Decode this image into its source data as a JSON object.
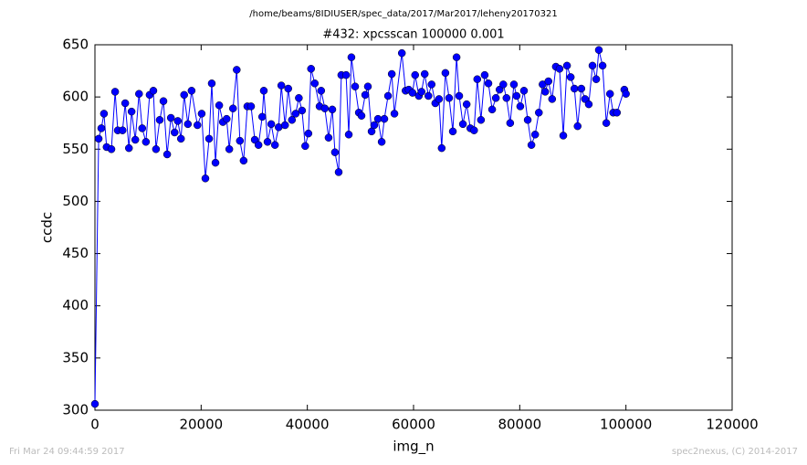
{
  "chart_data": {
    "type": "line",
    "suptitle": "/home/beams/8IDIUSER/spec_data/2017/Mar2017/leheny20170321",
    "title": "#432: xpcsscan 100000 0.001",
    "xlabel": "img_n",
    "ylabel": "ccdc",
    "footer_left": "Fri Mar 24 09:44:59 2017",
    "footer_right": "spec2nexus, (C) 2014-2017",
    "xlim": [
      0,
      120000
    ],
    "xticks": [
      0,
      20000,
      40000,
      60000,
      80000,
      100000,
      120000
    ],
    "ylim": [
      300,
      650
    ],
    "yticks": [
      300,
      350,
      400,
      450,
      500,
      550,
      600,
      650
    ],
    "series": [
      {
        "color": "#0000ff",
        "x": [
          0,
          700,
          1200,
          1700,
          2200,
          3100,
          3800,
          4300,
          5200,
          5700,
          6400,
          6900,
          7600,
          8300,
          8900,
          9600,
          10300,
          11000,
          11500,
          12200,
          12900,
          13600,
          14300,
          15000,
          15600,
          16200,
          16800,
          17500,
          18200,
          19300,
          20100,
          20800,
          21500,
          22000,
          22700,
          23400,
          24100,
          24800,
          25300,
          26000,
          26700,
          27300,
          28000,
          28700,
          29400,
          30100,
          30800,
          31500,
          31800,
          32500,
          33200,
          33900,
          34600,
          35100,
          35800,
          36400,
          37100,
          37800,
          38400,
          39000,
          39600,
          40200,
          40700,
          41400,
          42300,
          42600,
          43300,
          44000,
          44700,
          45200,
          45900,
          46400,
          47300,
          47800,
          48300,
          49000,
          49700,
          50200,
          50900,
          51400,
          52100,
          52600,
          53300,
          54000,
          54500,
          55200,
          55900,
          56400,
          57800,
          58500,
          59100,
          59800,
          60300,
          61000,
          61500,
          62100,
          62800,
          63400,
          64100,
          64800,
          65300,
          66000,
          66700,
          67400,
          68100,
          68600,
          69300,
          70000,
          70700,
          71400,
          72000,
          72700,
          73400,
          74100,
          74800,
          75500,
          76200,
          76900,
          77500,
          78200,
          78900,
          79400,
          80100,
          80800,
          81500,
          82200,
          82900,
          83600,
          84300,
          84800,
          85400,
          86100,
          86800,
          87500,
          88200,
          88900,
          89600,
          90300,
          90900,
          91600,
          92300,
          93000,
          93700,
          94400,
          94900,
          95600,
          96300,
          97000,
          97600,
          98300,
          99700,
          100000
        ],
        "values": [
          306,
          560,
          570,
          584,
          552,
          550,
          605,
          568,
          568,
          594,
          551,
          586,
          559,
          603,
          570,
          557,
          602,
          606,
          550,
          578,
          596,
          545,
          580,
          566,
          577,
          560,
          602,
          574,
          606,
          573,
          584,
          522,
          560,
          613,
          537,
          592,
          576,
          579,
          550,
          589,
          626,
          558,
          539,
          591,
          591,
          559,
          554,
          581,
          606,
          557,
          574,
          554,
          571,
          611,
          573,
          608,
          578,
          584,
          599,
          587,
          553,
          565,
          627,
          613,
          591,
          606,
          589,
          561,
          588,
          547,
          528,
          621,
          621,
          564,
          638,
          610,
          585,
          582,
          602,
          610,
          567,
          573,
          579,
          557,
          579,
          601,
          622,
          584,
          642,
          606,
          607,
          604,
          621,
          601,
          605,
          622,
          601,
          612,
          594,
          598,
          551,
          623,
          599,
          567,
          638,
          601,
          574,
          593,
          570,
          568,
          617,
          578,
          621,
          613,
          588,
          599,
          607,
          612,
          599,
          575,
          612,
          601,
          591,
          606,
          578,
          554,
          564,
          585,
          612,
          605,
          615,
          598,
          629,
          627,
          563,
          630,
          619,
          608,
          572,
          608,
          598,
          593,
          630,
          617,
          645,
          630,
          575,
          603,
          585,
          585,
          607,
          603
        ]
      }
    ]
  }
}
